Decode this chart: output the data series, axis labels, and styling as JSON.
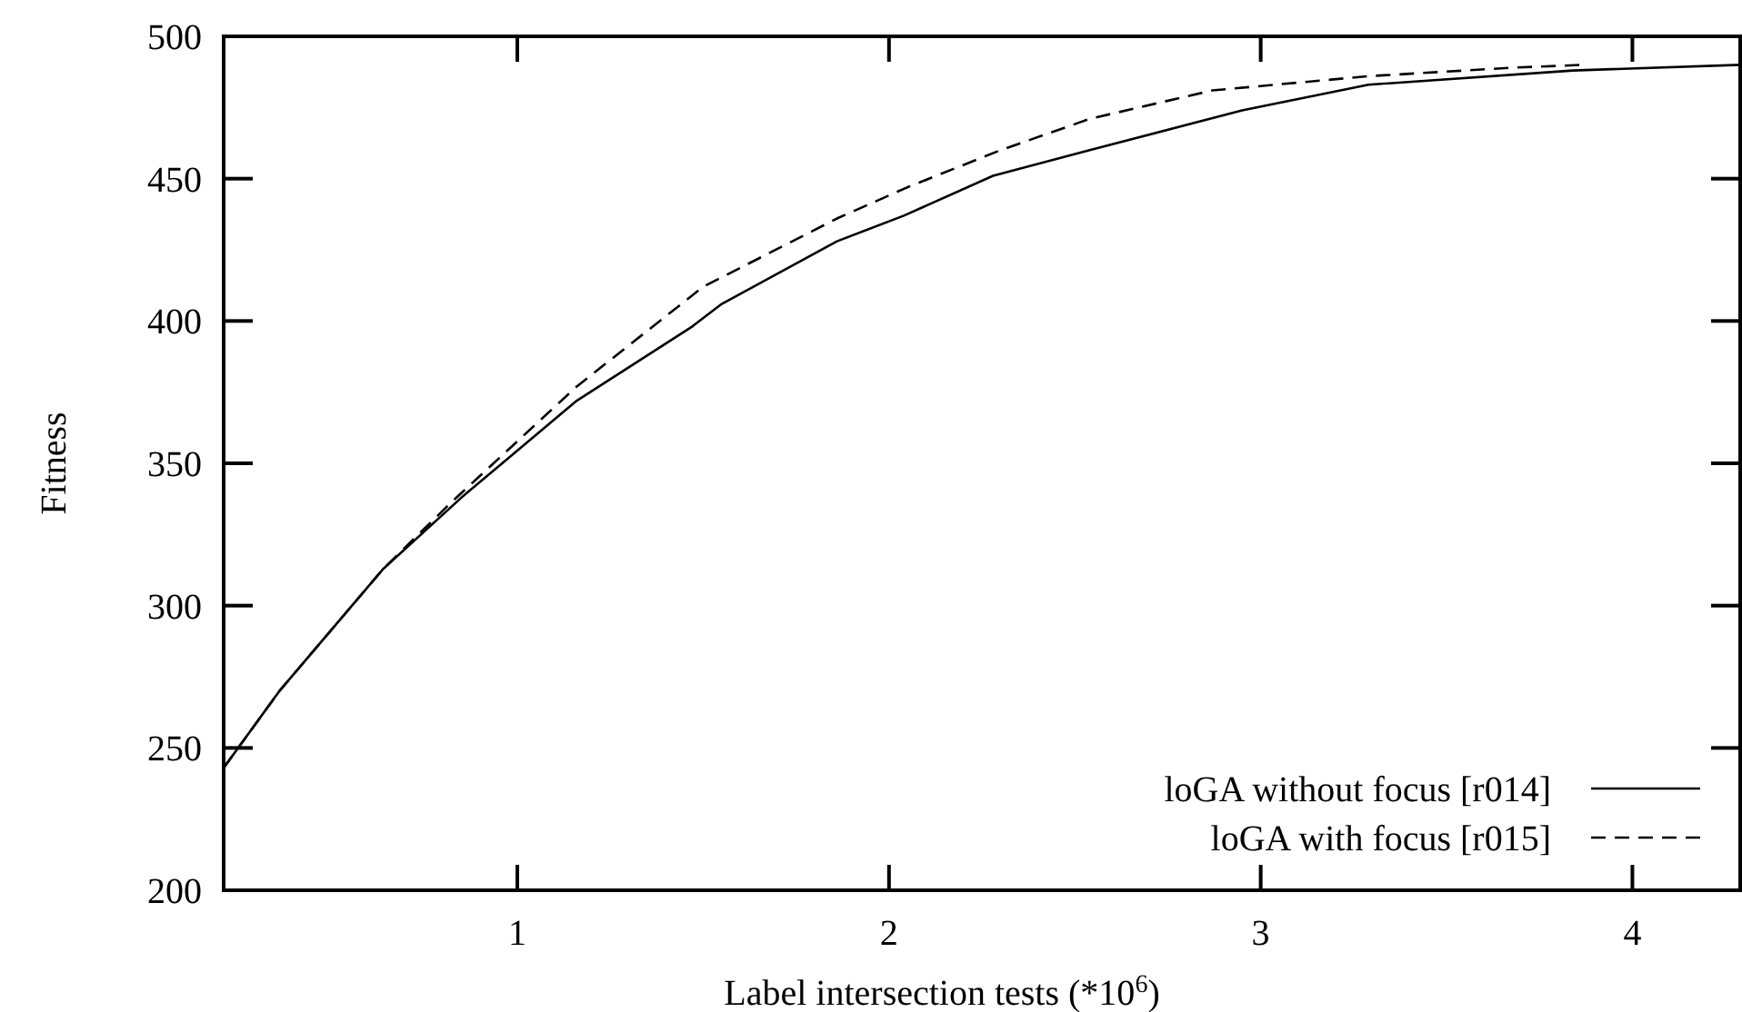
{
  "chart_data": {
    "type": "line",
    "xlabel": "Label intersection tests (*10$^{6}$)",
    "ylabel": "Fitness",
    "xlim": [
      0.21,
      4.29
    ],
    "ylim": [
      200,
      500
    ],
    "xticks": [
      1,
      2,
      3,
      4
    ],
    "yticks": [
      200,
      250,
      300,
      350,
      400,
      450,
      500
    ],
    "grid": false,
    "legend": "bottom right",
    "series": [
      {
        "name": "loGA without focus [r014]",
        "color": "#000000",
        "line_style": "solid",
        "x": [
          0.21,
          0.36,
          0.64,
          0.85,
          1.16,
          1.47,
          1.55,
          1.86,
          2.04,
          2.28,
          2.54,
          2.95,
          3.29,
          3.84,
          4.29
        ],
        "values": [
          243,
          270,
          313,
          338,
          372,
          398,
          406,
          428,
          437,
          451,
          460,
          474,
          483,
          488,
          490
        ]
      },
      {
        "name": "loGA with focus [r015]",
        "color": "#000000",
        "line_style": "dashed",
        "x": [
          0.21,
          0.36,
          0.64,
          0.82,
          1.16,
          1.5,
          1.86,
          2.05,
          2.3,
          2.54,
          2.87,
          3.29,
          3.68,
          3.87
        ],
        "values": [
          243,
          270,
          313,
          336,
          377,
          412,
          436,
          447,
          460,
          471,
          481,
          486,
          489,
          490
        ]
      }
    ]
  }
}
